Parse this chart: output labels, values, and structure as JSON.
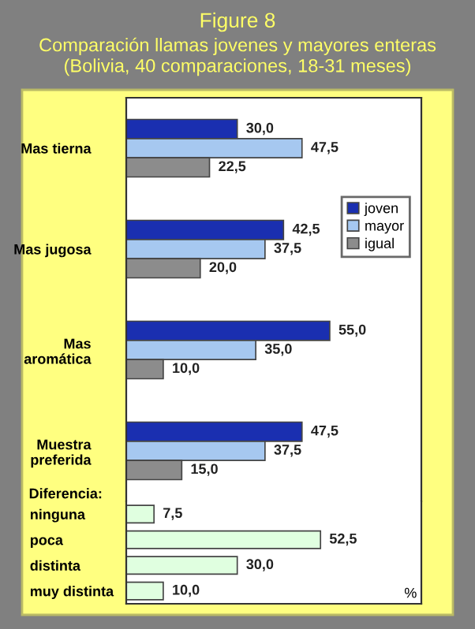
{
  "chart_data": [
    {
      "type": "bar",
      "orientation": "horizontal",
      "title": "Figure 8",
      "subtitle": "Comparación llamas jovenes y mayores enteras\n(Bolivia, 40 comparaciones, 18-31 meses)",
      "categories": [
        "Mas tierna",
        "Mas jugosa",
        "Mas\naromática",
        "Muestra\npreferida"
      ],
      "legend": "right",
      "tick_labels": "y",
      "grid": false,
      "series": [
        {
          "name": "joven",
          "color": "#1a2fb0",
          "values": [
            30.0,
            42.5,
            55.0,
            47.5
          ],
          "value_labels": [
            "30,0",
            "42,5",
            "55,0",
            "47,5"
          ]
        },
        {
          "name": "mayor",
          "color": "#a6c8f0",
          "values": [
            47.5,
            37.5,
            35.0,
            37.5
          ],
          "value_labels": [
            "47,5",
            "37,5",
            "35,0",
            "37,5"
          ]
        },
        {
          "name": "igual",
          "color": "#8c8c8c",
          "values": [
            22.5,
            20.0,
            10.0,
            15.0
          ],
          "value_labels": [
            "22,5",
            "20,0",
            "10,0",
            "15,0"
          ]
        }
      ]
    },
    {
      "type": "bar",
      "orientation": "horizontal",
      "categories": [
        "ninguna",
        "poca",
        "distinta",
        "muy distinta"
      ],
      "xlabel": "%",
      "annotations": [
        "Diferencia:"
      ],
      "tick_labels": "y",
      "grid": false,
      "series": [
        {
          "color": "#e0ffe0",
          "values": [
            7.5,
            52.5,
            30.0,
            10.0
          ],
          "value_labels": [
            "7,5",
            "52,5",
            "30,0",
            "10,0"
          ]
        }
      ]
    }
  ]
}
